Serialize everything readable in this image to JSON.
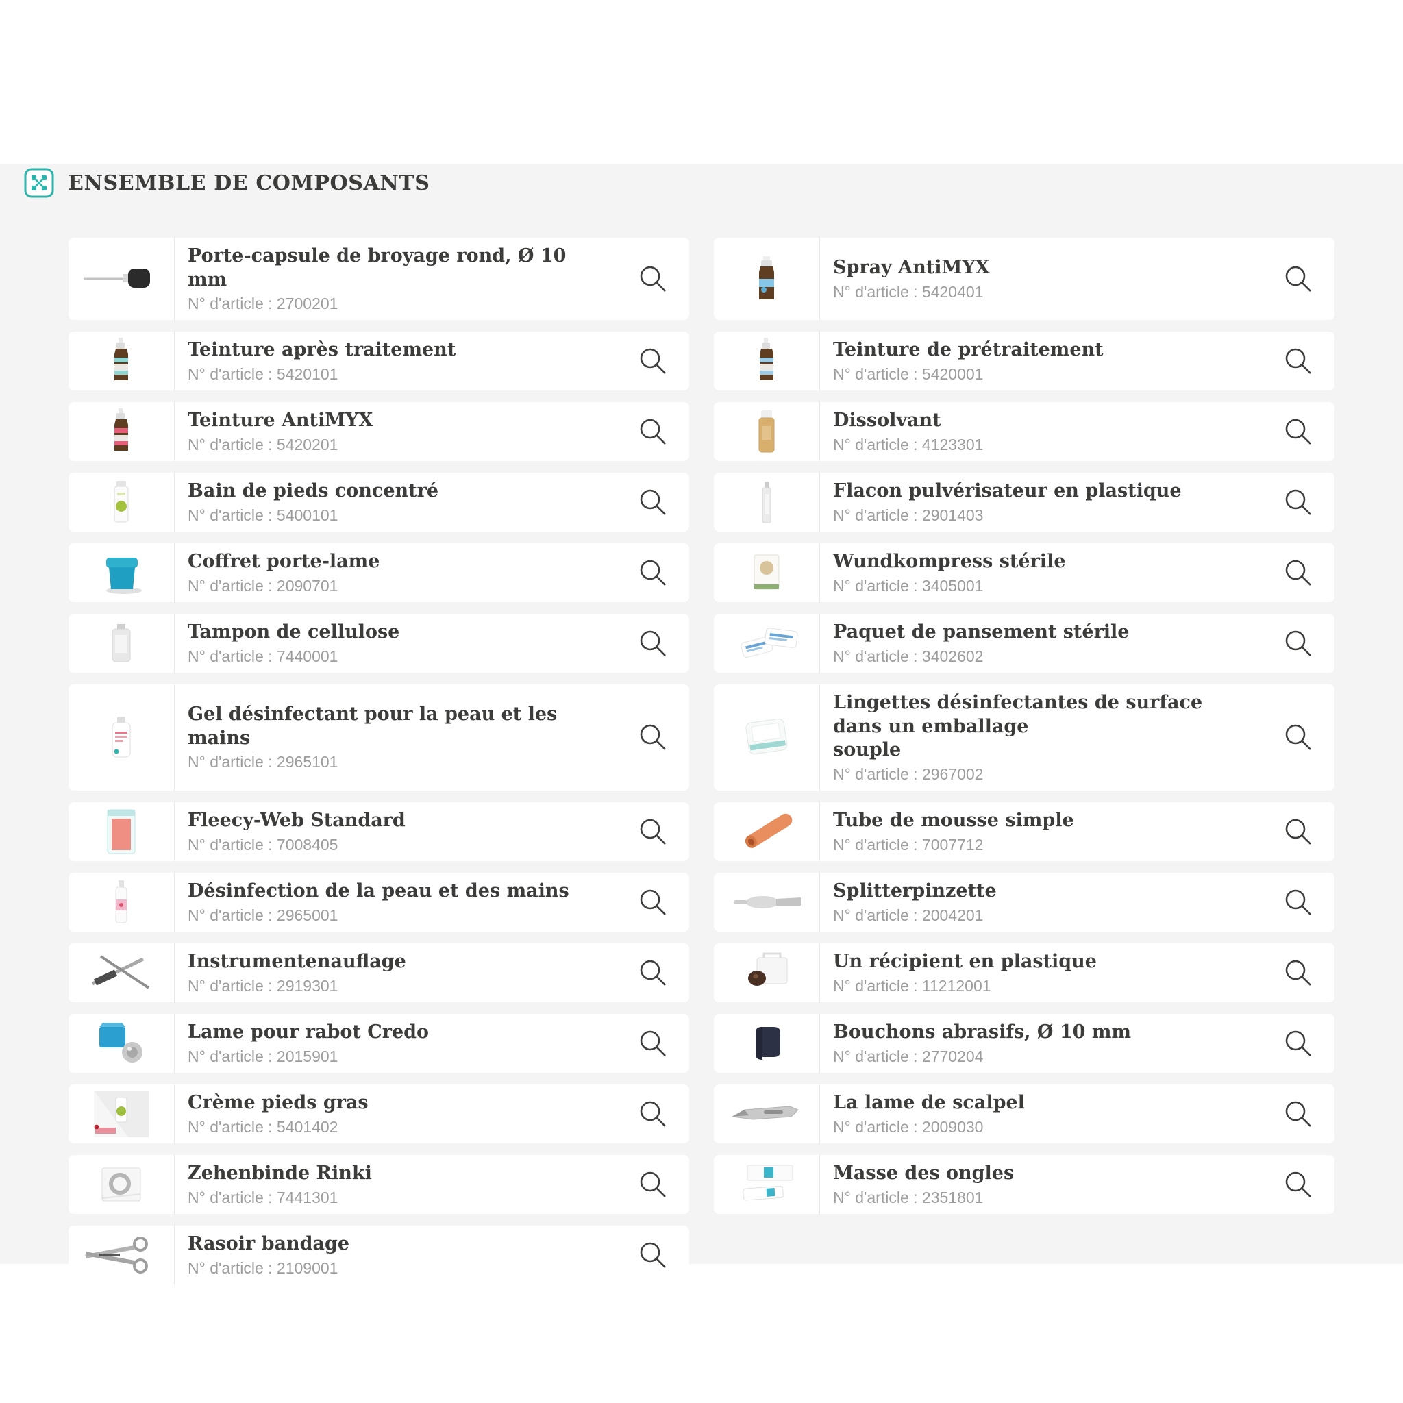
{
  "header": {
    "title": "ENSEMBLE DE COMPOSANTS",
    "icon": "components-icon"
  },
  "labels": {
    "article_prefix": "N° d'article :"
  },
  "colors": {
    "accent_teal": "#2cb5ad",
    "band_background": "#f4f4f4",
    "title_text": "#3c3c3b",
    "muted_text": "#9d9d9d",
    "search_icon": "#3d3d3c"
  },
  "columns": {
    "left": [
      {
        "title": "Porte-capsule de broyage rond, Ø 10 mm",
        "article_number": "2700201",
        "thumb": "mandrel"
      },
      {
        "title": "Teinture après traitement",
        "article_number": "5420101",
        "thumb": "bottle-teal"
      },
      {
        "title": "Teinture AntiMYX",
        "article_number": "5420201",
        "thumb": "bottle-red"
      },
      {
        "title": "Bain de pieds concentré",
        "article_number": "5400101",
        "thumb": "tube-green"
      },
      {
        "title": "Coffret porte-lame",
        "article_number": "2090701",
        "thumb": "coffret"
      },
      {
        "title": "Tampon de cellulose",
        "article_number": "7440001",
        "thumb": "jar-gray"
      },
      {
        "title": "Gel désinfectant pour la peau et les mains",
        "article_number": "2965101",
        "thumb": "gel-bottle"
      },
      {
        "title": "Fleecy-Web Standard",
        "article_number": "7008405",
        "thumb": "fleecy"
      },
      {
        "title": "Désinfection de la peau et des mains",
        "article_number": "2965001",
        "thumb": "spray-pink"
      },
      {
        "title": "Instrumentenauflage",
        "article_number": "2919301",
        "thumb": "instruments"
      },
      {
        "title": "Lame pour rabot Credo",
        "article_number": "2015901",
        "thumb": "credo"
      },
      {
        "title": "Crème pieds gras",
        "article_number": "5401402",
        "thumb": "creme"
      },
      {
        "title": "Zehenbinde Rinki",
        "article_number": "7441301",
        "thumb": "zehenbinde"
      },
      {
        "title": "Rasoir bandage",
        "article_number": "2109001",
        "thumb": "rasoir"
      }
    ],
    "right": [
      {
        "title": "Spray AntiMYX",
        "article_number": "5420401",
        "thumb": "spray-antimyx"
      },
      {
        "title": "Teinture de prétraitement",
        "article_number": "5420001",
        "thumb": "bottle-blue"
      },
      {
        "title": "Dissolvant",
        "article_number": "4123301",
        "thumb": "dissolvant"
      },
      {
        "title": "Flacon pulvérisateur en plastique",
        "article_number": "2901403",
        "thumb": "flacon"
      },
      {
        "title": "Wundkompress stérile",
        "article_number": "3405001",
        "thumb": "wundkompress"
      },
      {
        "title": "Paquet de pansement stérile",
        "article_number": "3402602",
        "thumb": "pansement"
      },
      {
        "title": "Lingettes désinfectantes de surface dans un emballage\nsouple",
        "article_number": "2967002",
        "thumb": "lingettes"
      },
      {
        "title": "Tube de mousse simple",
        "article_number": "7007712",
        "thumb": "mousse"
      },
      {
        "title": "Splitterpinzette",
        "article_number": "2004201",
        "thumb": "pinzette"
      },
      {
        "title": "Un récipient en plastique",
        "article_number": "11212001",
        "thumb": "recipient"
      },
      {
        "title": "Bouchons abrasifs, Ø 10 mm",
        "article_number": "2770204",
        "thumb": "bouchons"
      },
      {
        "title": "La lame de scalpel",
        "article_number": "2009030",
        "thumb": "scalpel"
      },
      {
        "title": "Masse des ongles",
        "article_number": "2351801",
        "thumb": "masse"
      }
    ]
  }
}
